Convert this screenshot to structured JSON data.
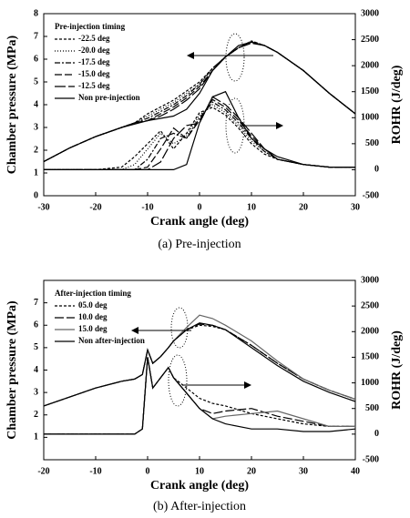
{
  "chart_data": [
    {
      "type": "line",
      "caption": "(a)  Pre-injection",
      "xlabel": "Crank angle (deg)",
      "ylabel": "Chamber pressure (MPa)",
      "y2label": "ROHR (J/deg)",
      "legend_title": "Pre-injection timing",
      "legend": "upper left",
      "xlim": [
        -30,
        30
      ],
      "xticks": [
        -30,
        -20,
        -10,
        0,
        10,
        20,
        30
      ],
      "ylim": [
        0,
        8
      ],
      "yticks": [
        0,
        1,
        2,
        3,
        4,
        5,
        6,
        7,
        8
      ],
      "y2lim": [
        -500,
        3000
      ],
      "y2ticks": [
        -500,
        0,
        500,
        1000,
        1500,
        2000,
        2500,
        3000
      ],
      "x": [
        -30,
        -25,
        -20,
        -15,
        -12.5,
        -10,
        -7.5,
        -5,
        -2.5,
        0,
        2.5,
        5,
        7.5,
        10,
        12.5,
        15,
        20,
        25,
        30
      ],
      "series": [
        {
          "name": "-22.5 deg",
          "color": "#000000",
          "dash": "3 2",
          "values": [
            1.5,
            2.1,
            2.6,
            3.0,
            3.2,
            3.6,
            3.9,
            4.2,
            4.6,
            5.0,
            5.6,
            6.1,
            6.5,
            6.8,
            6.6,
            6.3,
            5.5,
            4.5,
            3.6
          ],
          "y2_values": [
            0,
            0,
            0,
            50,
            250,
            500,
            750,
            400,
            700,
            1100,
            1200,
            1050,
            800,
            500,
            300,
            200,
            100,
            50,
            50
          ]
        },
        {
          "name": "-20.0 deg",
          "color": "#000000",
          "dash": "1 2",
          "values": [
            1.5,
            2.1,
            2.6,
            3.0,
            3.2,
            3.5,
            3.8,
            4.1,
            4.5,
            4.9,
            5.6,
            6.1,
            6.5,
            6.8,
            6.6,
            6.3,
            5.5,
            4.5,
            3.6
          ],
          "y2_values": [
            0,
            0,
            0,
            0,
            100,
            400,
            700,
            500,
            650,
            1050,
            1250,
            1100,
            850,
            550,
            350,
            200,
            100,
            50,
            50
          ]
        },
        {
          "name": "-17.5 deg",
          "color": "#000000",
          "dash": "6 2 2 2",
          "values": [
            1.5,
            2.1,
            2.6,
            3.0,
            3.2,
            3.4,
            3.7,
            4.0,
            4.4,
            4.9,
            5.6,
            6.1,
            6.5,
            6.75,
            6.6,
            6.3,
            5.5,
            4.5,
            3.6
          ],
          "y2_values": [
            0,
            0,
            0,
            0,
            0,
            200,
            600,
            700,
            600,
            1000,
            1300,
            1150,
            900,
            600,
            350,
            200,
            100,
            50,
            50
          ]
        },
        {
          "name": "-15.0 deg",
          "color": "#000000",
          "dash": "8 3",
          "values": [
            1.5,
            2.1,
            2.6,
            3.0,
            3.2,
            3.3,
            3.6,
            3.9,
            4.3,
            4.8,
            5.5,
            6.1,
            6.5,
            6.75,
            6.6,
            6.3,
            5.5,
            4.5,
            3.6
          ],
          "y2_values": [
            0,
            0,
            0,
            0,
            0,
            50,
            400,
            800,
            600,
            950,
            1350,
            1200,
            950,
            650,
            400,
            200,
            100,
            50,
            50
          ]
        },
        {
          "name": "-12.5 deg",
          "color": "#000000",
          "dash": "12 3",
          "values": [
            1.5,
            2.1,
            2.6,
            3.0,
            3.2,
            3.3,
            3.5,
            3.8,
            4.2,
            4.7,
            5.5,
            6.1,
            6.5,
            6.7,
            6.6,
            6.3,
            5.5,
            4.5,
            3.6
          ],
          "y2_values": [
            0,
            0,
            0,
            0,
            0,
            0,
            150,
            600,
            850,
            900,
            1400,
            1250,
            1000,
            700,
            400,
            200,
            100,
            50,
            50
          ]
        },
        {
          "name": "Non pre-injection",
          "color": "#000000",
          "values": [
            1.5,
            2.1,
            2.6,
            3.0,
            3.15,
            3.3,
            3.4,
            3.5,
            3.8,
            4.5,
            5.5,
            6.1,
            6.6,
            6.75,
            6.6,
            6.3,
            5.5,
            4.5,
            3.6
          ],
          "y2_values": [
            0,
            0,
            0,
            0,
            0,
            0,
            0,
            0,
            100,
            900,
            1400,
            1500,
            1000,
            600,
            400,
            250,
            100,
            50,
            50
          ]
        }
      ]
    },
    {
      "type": "line",
      "caption": "(b)  After-injection",
      "xlabel": "Crank angle (deg)",
      "ylabel": "Chamber pressure (MPa)",
      "y2label": "ROHR (J/deg)",
      "legend_title": "After-injection timing",
      "legend": "upper left",
      "xlim": [
        -20,
        40
      ],
      "xticks": [
        -20,
        -10,
        0,
        10,
        20,
        30,
        40
      ],
      "ylim": [
        0,
        8
      ],
      "yticks": [
        1,
        2,
        3,
        4,
        5,
        6,
        7
      ],
      "y2lim": [
        -500,
        3000
      ],
      "y2ticks": [
        -500,
        0,
        500,
        1000,
        1500,
        2000,
        2500,
        3000
      ],
      "x": [
        -20,
        -15,
        -10,
        -5,
        -2.5,
        -1,
        0,
        1,
        2.5,
        4,
        5,
        7.5,
        10,
        12.5,
        15,
        20,
        25,
        30,
        35,
        40
      ],
      "series": [
        {
          "name": "05.0 deg",
          "color": "#000000",
          "dash": "3 2",
          "values": [
            2.4,
            2.8,
            3.2,
            3.5,
            3.6,
            3.8,
            4.9,
            4.3,
            4.6,
            5.0,
            5.3,
            5.8,
            6.0,
            5.95,
            5.8,
            5.1,
            4.3,
            3.6,
            3.1,
            2.7
          ],
          "y2_values": [
            0,
            0,
            0,
            0,
            0,
            100,
            1500,
            900,
            1100,
            1300,
            1100,
            900,
            700,
            600,
            550,
            400,
            300,
            200,
            150,
            150
          ]
        },
        {
          "name": "10.0 deg",
          "color": "#000000",
          "dash": "10 3",
          "values": [
            2.4,
            2.8,
            3.2,
            3.5,
            3.6,
            3.8,
            4.9,
            4.3,
            4.6,
            5.0,
            5.3,
            5.8,
            6.05,
            6.0,
            5.8,
            5.1,
            4.3,
            3.6,
            3.1,
            2.7
          ],
          "y2_values": [
            0,
            0,
            0,
            0,
            0,
            100,
            1500,
            900,
            1100,
            1300,
            1100,
            800,
            500,
            400,
            450,
            500,
            350,
            250,
            150,
            150
          ]
        },
        {
          "name": "15.0 deg",
          "color": "#666666",
          "values": [
            2.4,
            2.8,
            3.2,
            3.5,
            3.6,
            3.8,
            4.9,
            4.3,
            4.6,
            5.0,
            5.3,
            5.9,
            6.45,
            6.3,
            6.0,
            5.3,
            4.4,
            3.6,
            3.1,
            2.7
          ],
          "y2_values": [
            0,
            0,
            0,
            0,
            0,
            100,
            1500,
            900,
            1100,
            1300,
            1100,
            800,
            500,
            300,
            350,
            400,
            450,
            300,
            150,
            150
          ]
        },
        {
          "name": "Non after-injection",
          "color": "#000000",
          "values": [
            2.4,
            2.8,
            3.2,
            3.5,
            3.6,
            3.8,
            4.9,
            4.3,
            4.6,
            5.0,
            5.3,
            5.8,
            6.1,
            6.0,
            5.8,
            5.0,
            4.2,
            3.5,
            3.0,
            2.6
          ],
          "y2_values": [
            0,
            0,
            0,
            0,
            0,
            100,
            1500,
            900,
            1100,
            1300,
            1100,
            800,
            500,
            300,
            200,
            100,
            100,
            50,
            50,
            100
          ]
        }
      ]
    }
  ]
}
